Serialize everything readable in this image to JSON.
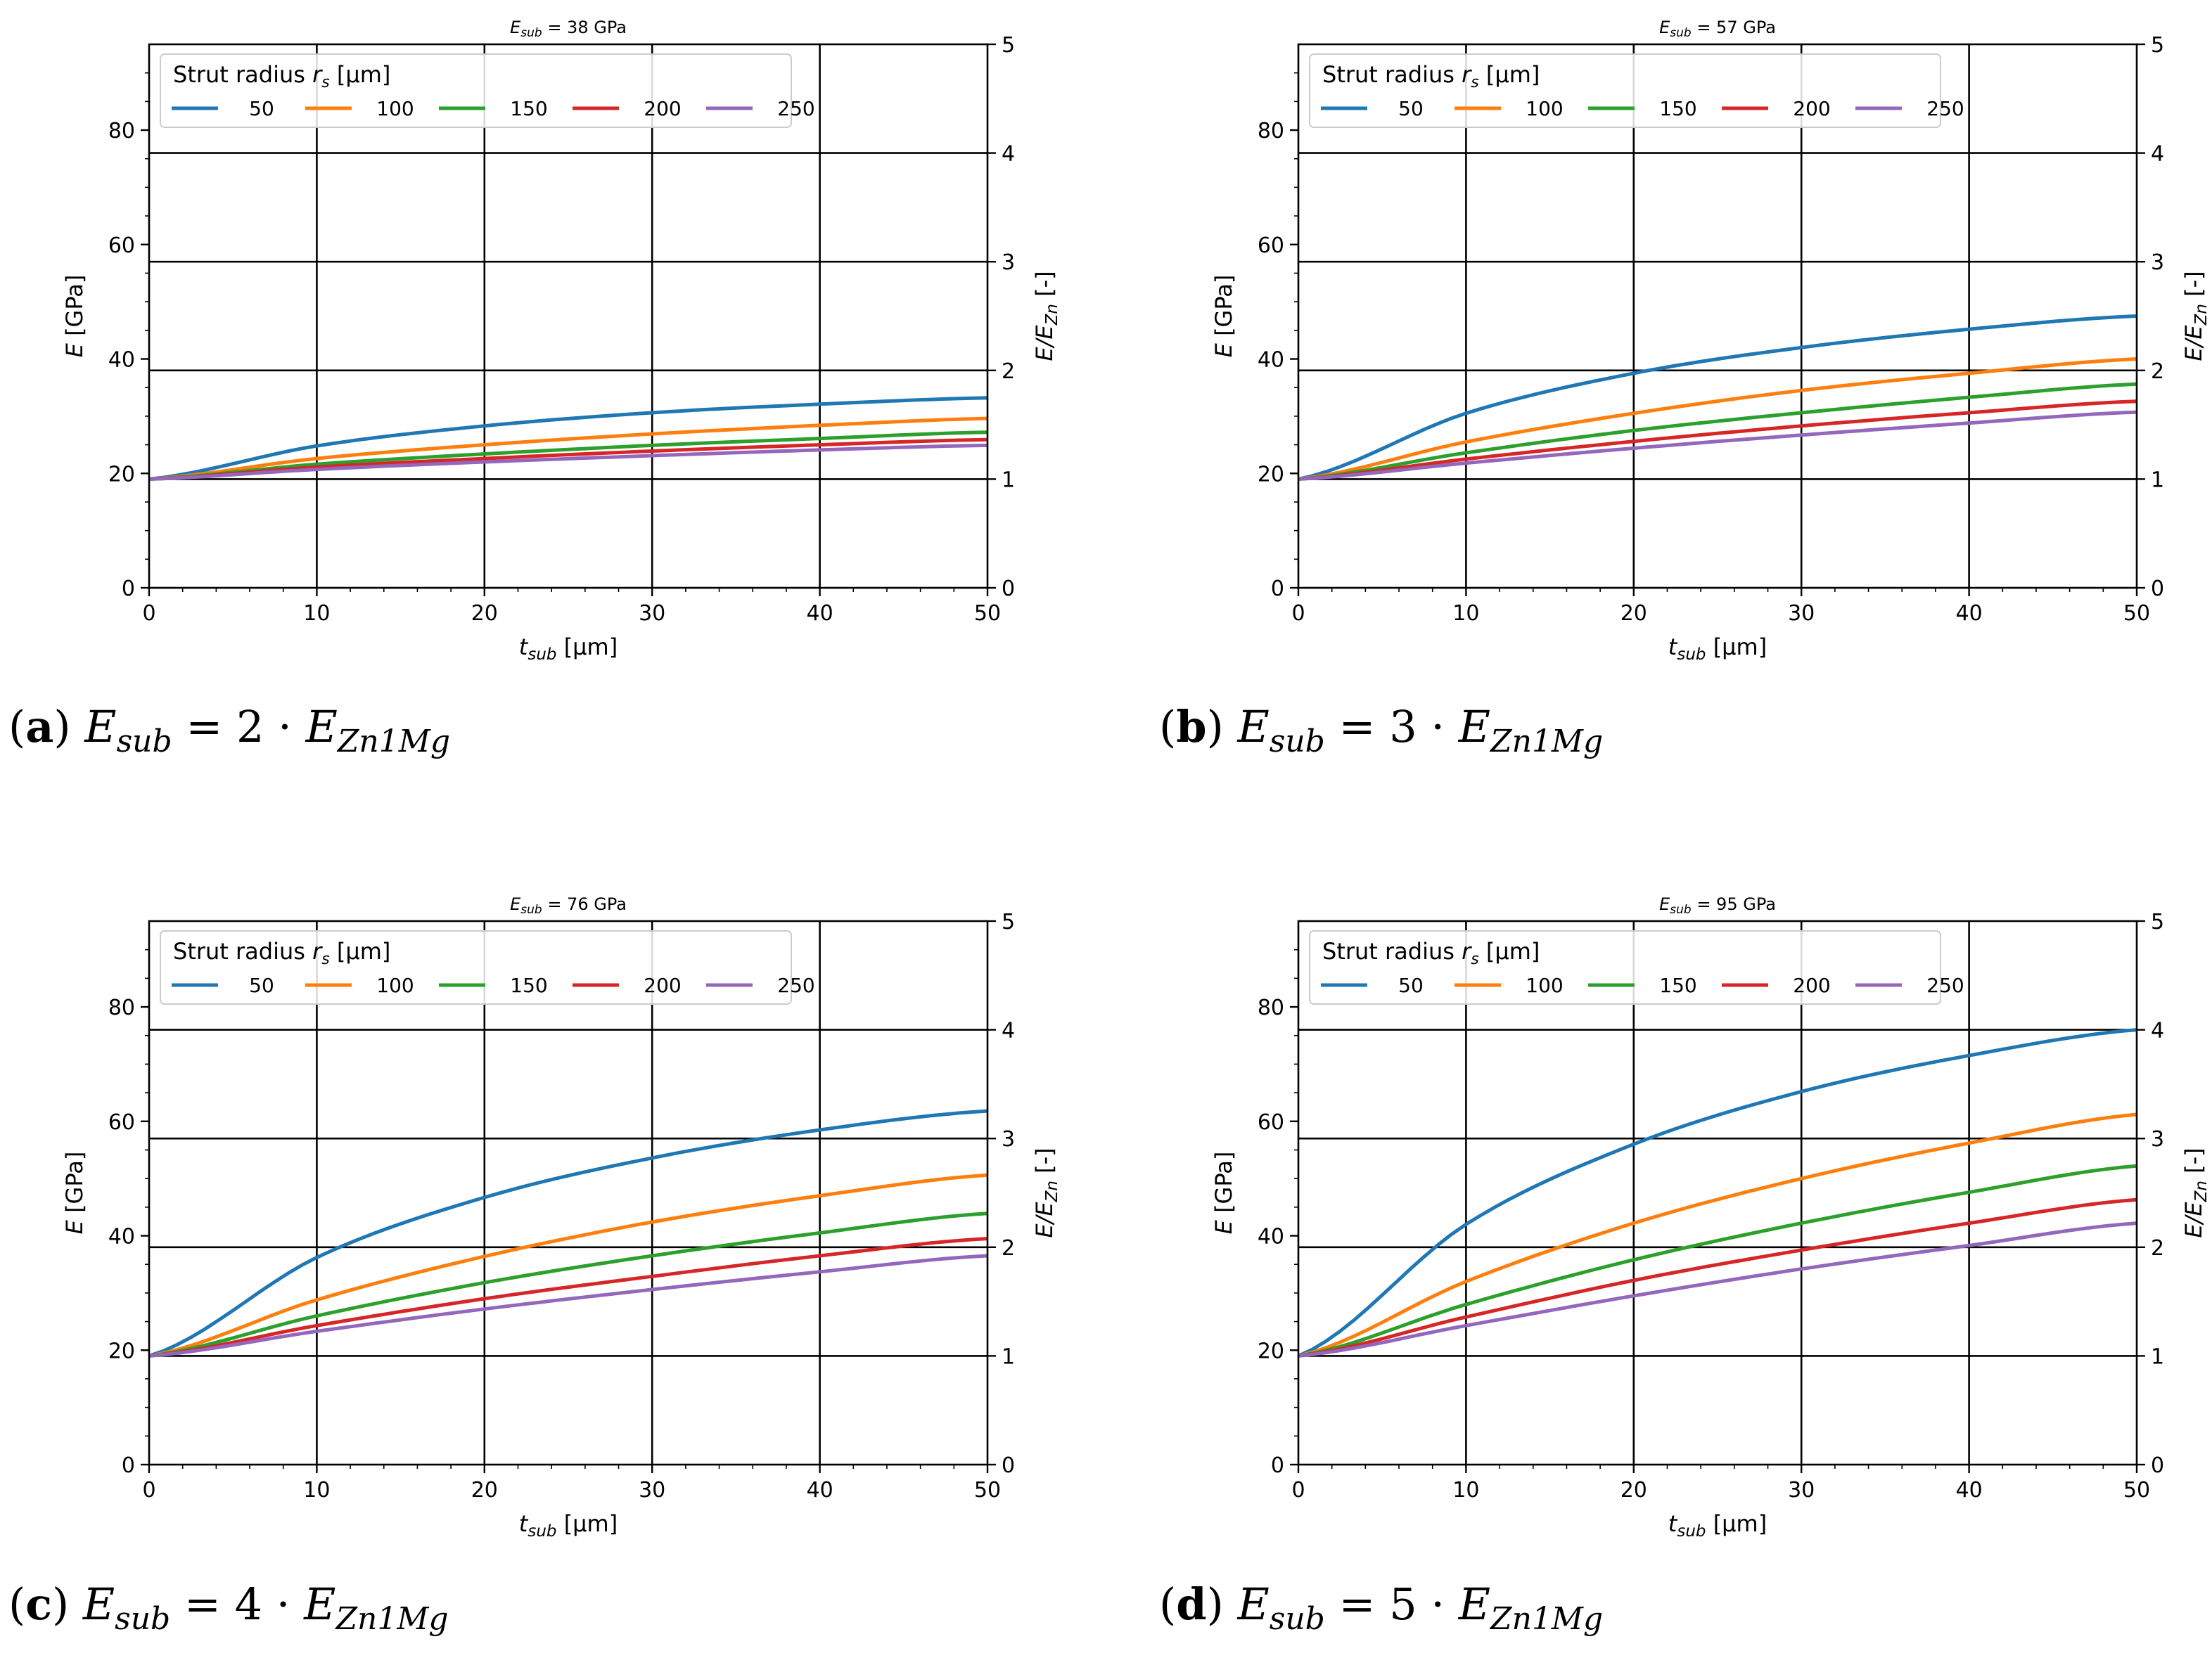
{
  "colors": {
    "series": [
      "#1f77b4",
      "#ff7f0e",
      "#2ca02c",
      "#d62728",
      "#9467bd"
    ]
  },
  "chart_data": [
    {
      "type": "line",
      "panel_label": "(a)",
      "caption": {
        "lhs": "E",
        "lhs_sub": "sub",
        "eq": " = 2 · ",
        "rhs": "E",
        "rhs_sub": "Zn1Mg"
      },
      "title": {
        "sym": "E",
        "sub": "sub",
        "text": " = 38 GPa"
      },
      "xlabel": {
        "sym": "t",
        "sub": "sub",
        "text": " [μm]"
      },
      "ylabel": {
        "sym": "E",
        "text": " [GPa]"
      },
      "y2label": {
        "sym": "E/E",
        "sub": "Zn",
        "text": " [-]"
      },
      "xlim": [
        0,
        50
      ],
      "ylim": [
        0,
        95
      ],
      "y2lim": [
        0,
        5
      ],
      "xticks": [
        "0",
        "10",
        "20",
        "30",
        "40",
        "50"
      ],
      "yticks": [
        "0",
        "20",
        "40",
        "60",
        "80"
      ],
      "y2ticks": [
        "0",
        "1",
        "2",
        "3",
        "4",
        "5"
      ],
      "legend": {
        "title": "Strut radius ",
        "title_sym": "r",
        "title_sub": "s",
        "title_unit": " [μm]",
        "placement": "upper-left"
      },
      "x": [
        0,
        10,
        20,
        30,
        40,
        50
      ],
      "series": [
        {
          "name": "50",
          "values": [
            19.0,
            24.8,
            28.3,
            30.6,
            32.1,
            33.2
          ]
        },
        {
          "name": "100",
          "values": [
            19.0,
            22.6,
            25.0,
            26.9,
            28.4,
            29.6
          ]
        },
        {
          "name": "150",
          "values": [
            19.0,
            21.6,
            23.4,
            24.9,
            26.1,
            27.2
          ]
        },
        {
          "name": "200",
          "values": [
            19.0,
            21.1,
            22.6,
            23.9,
            25.0,
            25.9
          ]
        },
        {
          "name": "250",
          "values": [
            19.0,
            20.7,
            22.0,
            23.1,
            24.1,
            24.9
          ]
        }
      ]
    },
    {
      "type": "line",
      "panel_label": "(b)",
      "caption": {
        "lhs": "E",
        "lhs_sub": "sub",
        "eq": " = 3 · ",
        "rhs": "E",
        "rhs_sub": "Zn1Mg"
      },
      "title": {
        "sym": "E",
        "sub": "sub",
        "text": " = 57 GPa"
      },
      "xlabel": {
        "sym": "t",
        "sub": "sub",
        "text": " [μm]"
      },
      "ylabel": {
        "sym": "E",
        "text": " [GPa]"
      },
      "y2label": {
        "sym": "E/E",
        "sub": "Zn",
        "text": " [-]"
      },
      "xlim": [
        0,
        50
      ],
      "ylim": [
        0,
        95
      ],
      "y2lim": [
        0,
        5
      ],
      "xticks": [
        "0",
        "10",
        "20",
        "30",
        "40",
        "50"
      ],
      "yticks": [
        "0",
        "20",
        "40",
        "60",
        "80"
      ],
      "y2ticks": [
        "0",
        "1",
        "2",
        "3",
        "4",
        "5"
      ],
      "legend": {
        "title": "Strut radius ",
        "title_sym": "r",
        "title_sub": "s",
        "title_unit": " [μm]",
        "placement": "upper-left"
      },
      "x": [
        0,
        10,
        20,
        30,
        40,
        50
      ],
      "series": [
        {
          "name": "50",
          "values": [
            19.0,
            30.5,
            37.5,
            42.0,
            45.2,
            47.5
          ]
        },
        {
          "name": "100",
          "values": [
            19.0,
            25.5,
            30.5,
            34.5,
            37.5,
            40.0
          ]
        },
        {
          "name": "150",
          "values": [
            19.0,
            23.6,
            27.5,
            30.6,
            33.3,
            35.6
          ]
        },
        {
          "name": "200",
          "values": [
            19.0,
            22.5,
            25.6,
            28.3,
            30.6,
            32.6
          ]
        },
        {
          "name": "250",
          "values": [
            19.0,
            21.8,
            24.4,
            26.7,
            28.8,
            30.7
          ]
        }
      ]
    },
    {
      "type": "line",
      "panel_label": "(c)",
      "caption": {
        "lhs": "E",
        "lhs_sub": "sub",
        "eq": " = 4 · ",
        "rhs": "E",
        "rhs_sub": "Zn1Mg"
      },
      "title": {
        "sym": "E",
        "sub": "sub",
        "text": " = 76 GPa"
      },
      "xlabel": {
        "sym": "t",
        "sub": "sub",
        "text": " [μm]"
      },
      "ylabel": {
        "sym": "E",
        "text": " [GPa]"
      },
      "y2label": {
        "sym": "E/E",
        "sub": "Zn",
        "text": " [-]"
      },
      "xlim": [
        0,
        50
      ],
      "ylim": [
        0,
        95
      ],
      "y2lim": [
        0,
        5
      ],
      "xticks": [
        "0",
        "10",
        "20",
        "30",
        "40",
        "50"
      ],
      "yticks": [
        "0",
        "20",
        "40",
        "60",
        "80"
      ],
      "y2ticks": [
        "0",
        "1",
        "2",
        "3",
        "4",
        "5"
      ],
      "legend": {
        "title": "Strut radius ",
        "title_sym": "r",
        "title_sub": "s",
        "title_unit": " [μm]",
        "placement": "upper-left"
      },
      "x": [
        0,
        10,
        20,
        30,
        40,
        50
      ],
      "series": [
        {
          "name": "50",
          "values": [
            19.0,
            36.2,
            46.7,
            53.6,
            58.5,
            61.8
          ]
        },
        {
          "name": "100",
          "values": [
            19.0,
            28.8,
            36.4,
            42.4,
            47.0,
            50.6
          ]
        },
        {
          "name": "150",
          "values": [
            19.0,
            26.0,
            31.8,
            36.5,
            40.5,
            43.9
          ]
        },
        {
          "name": "200",
          "values": [
            19.0,
            24.3,
            29.0,
            32.9,
            36.5,
            39.5
          ]
        },
        {
          "name": "250",
          "values": [
            19.0,
            23.3,
            27.2,
            30.6,
            33.7,
            36.5
          ]
        }
      ]
    },
    {
      "type": "line",
      "panel_label": "(d)",
      "caption": {
        "lhs": "E",
        "lhs_sub": "sub",
        "eq": " = 5 · ",
        "rhs": "E",
        "rhs_sub": "Zn1Mg"
      },
      "title": {
        "sym": "E",
        "sub": "sub",
        "text": " = 95 GPa"
      },
      "xlabel": {
        "sym": "t",
        "sub": "sub",
        "text": " [μm]"
      },
      "ylabel": {
        "sym": "E",
        "text": " [GPa]"
      },
      "y2label": {
        "sym": "E/E",
        "sub": "Zn",
        "text": " [-]"
      },
      "xlim": [
        0,
        50
      ],
      "ylim": [
        0,
        95
      ],
      "y2lim": [
        0,
        5
      ],
      "xticks": [
        "0",
        "10",
        "20",
        "30",
        "40",
        "50"
      ],
      "yticks": [
        "0",
        "20",
        "40",
        "60",
        "80"
      ],
      "y2ticks": [
        "0",
        "1",
        "2",
        "3",
        "4",
        "5"
      ],
      "legend": {
        "title": "Strut radius ",
        "title_sym": "r",
        "title_sub": "s",
        "title_unit": " [μm]",
        "placement": "upper-left"
      },
      "x": [
        0,
        10,
        20,
        30,
        40,
        50
      ],
      "series": [
        {
          "name": "50",
          "values": [
            19.0,
            42.0,
            56.0,
            65.2,
            71.5,
            76.0
          ]
        },
        {
          "name": "100",
          "values": [
            19.0,
            32.0,
            42.2,
            50.0,
            56.2,
            61.2
          ]
        },
        {
          "name": "150",
          "values": [
            19.0,
            28.0,
            35.8,
            42.2,
            47.6,
            52.2
          ]
        },
        {
          "name": "200",
          "values": [
            19.0,
            25.8,
            32.2,
            37.5,
            42.2,
            46.3
          ]
        },
        {
          "name": "250",
          "values": [
            19.0,
            24.3,
            29.5,
            34.2,
            38.3,
            42.2
          ]
        }
      ]
    }
  ]
}
